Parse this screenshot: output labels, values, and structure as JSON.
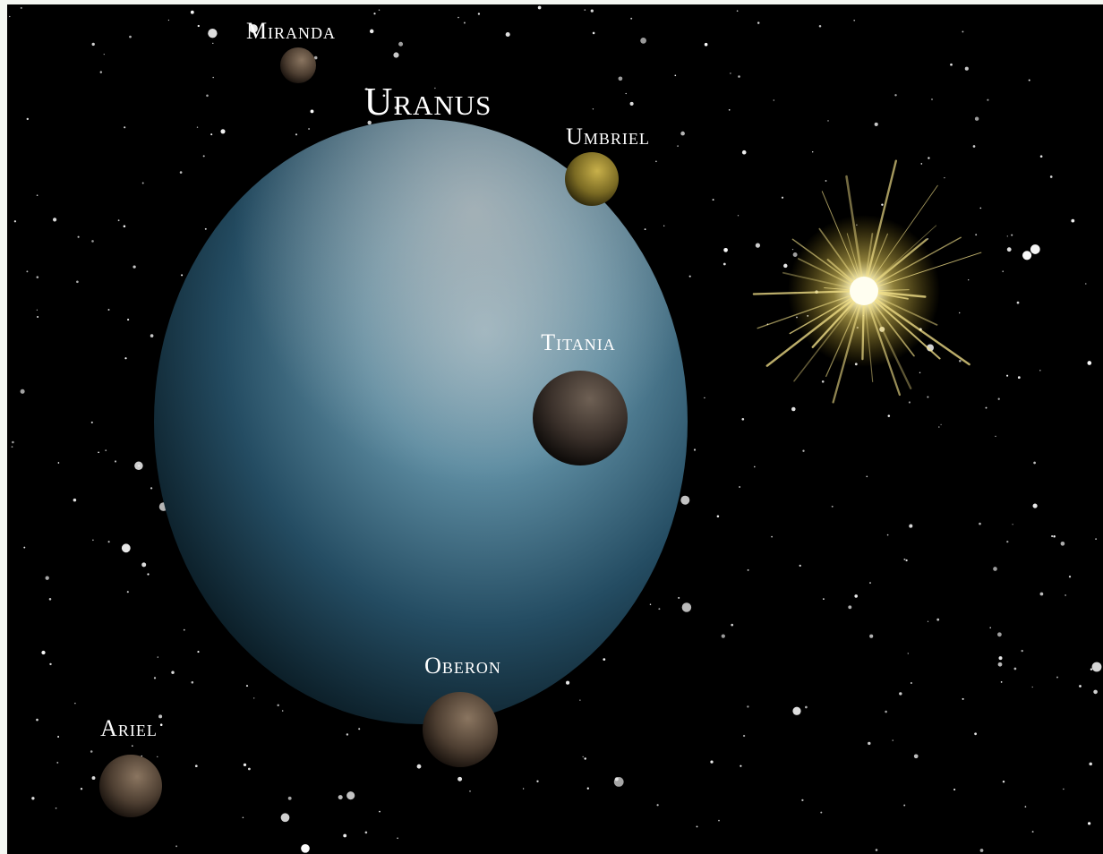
{
  "title": "Uranus",
  "moons": [
    {
      "label": "Miranda"
    },
    {
      "label": "Umbriel"
    },
    {
      "label": "Titania"
    },
    {
      "label": "Oberon"
    },
    {
      "label": "Ariel"
    }
  ]
}
